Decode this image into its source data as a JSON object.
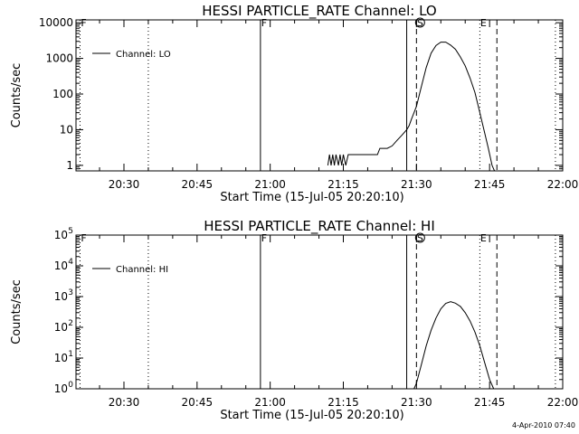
{
  "chart_data": [
    {
      "type": "line",
      "title": "HESSI PARTICLE_RATE Channel: LO",
      "xlabel": "Start Time (15-Jul-05 20:20:10)",
      "ylabel": "Counts/sec",
      "y_scale": "log",
      "ylim": [
        0.7,
        12000
      ],
      "y_ticks": [
        {
          "value": 1,
          "label": "1"
        },
        {
          "value": 10,
          "label": "10"
        },
        {
          "value": 100,
          "label": "100"
        },
        {
          "value": 1000,
          "label": "1000"
        },
        {
          "value": 10000,
          "label": "10000"
        }
      ],
      "x_ticks": [
        "20:30",
        "20:45",
        "21:00",
        "21:15",
        "21:30",
        "21:45",
        "22:00"
      ],
      "legend": {
        "label": "Channel: LO",
        "position": "top-left"
      },
      "markers": [
        {
          "t": "20:21:00",
          "style": "dotted",
          "label": "F"
        },
        {
          "t": "20:35:00",
          "style": "dotted",
          "label": ""
        },
        {
          "t": "20:58:00",
          "style": "solid",
          "label": "F"
        },
        {
          "t": "21:28:00",
          "style": "solid",
          "label": ""
        },
        {
          "t": "21:30:00",
          "style": "dashed",
          "label": "S"
        },
        {
          "t": "21:43:00",
          "style": "dotted",
          "label": "E"
        },
        {
          "t": "21:46:30",
          "style": "dashed",
          "label": ""
        },
        {
          "t": "21:58:30",
          "style": "dotted",
          "label": ""
        }
      ],
      "series": [
        {
          "name": "Channel: LO",
          "points": [
            [
              "21:11:50",
              1.0
            ],
            [
              "21:12:10",
              2.0
            ],
            [
              "21:12:30",
              1.0
            ],
            [
              "21:12:50",
              2.0
            ],
            [
              "21:13:10",
              1.0
            ],
            [
              "21:13:30",
              2.0
            ],
            [
              "21:14:00",
              1.0
            ],
            [
              "21:14:20",
              2.0
            ],
            [
              "21:14:40",
              1.0
            ],
            [
              "21:15:00",
              2.0
            ],
            [
              "21:15:30",
              1.0
            ],
            [
              "21:16:00",
              2.0
            ],
            [
              "21:22:00",
              2.0
            ],
            [
              "21:22:30",
              3.0
            ],
            [
              "21:24:00",
              3.0
            ],
            [
              "21:25:00",
              3.5
            ],
            [
              "21:26:00",
              5.0
            ],
            [
              "21:27:00",
              7.0
            ],
            [
              "21:28:00",
              10
            ],
            [
              "21:28:30",
              13
            ],
            [
              "21:29:00",
              20
            ],
            [
              "21:30:00",
              45
            ],
            [
              "21:31:00",
              160
            ],
            [
              "21:32:00",
              550
            ],
            [
              "21:33:00",
              1400
            ],
            [
              "21:34:00",
              2300
            ],
            [
              "21:35:00",
              2850
            ],
            [
              "21:36:00",
              2850
            ],
            [
              "21:37:00",
              2350
            ],
            [
              "21:38:00",
              1800
            ],
            [
              "21:39:00",
              1100
            ],
            [
              "21:40:00",
              620
            ],
            [
              "21:41:00",
              280
            ],
            [
              "21:42:00",
              110
            ],
            [
              "21:43:00",
              30
            ],
            [
              "21:44:00",
              8
            ],
            [
              "21:44:45",
              3
            ],
            [
              "21:45:30",
              1.0
            ],
            [
              "21:46:00",
              0.7
            ]
          ]
        }
      ]
    },
    {
      "type": "line",
      "title": "HESSI PARTICLE_RATE Channel: HI",
      "xlabel": "Start Time (15-Jul-05 20:20:10)",
      "ylabel": "Counts/sec",
      "y_scale": "log",
      "ylim": [
        1,
        100000
      ],
      "y_ticks": [
        {
          "value": 1,
          "base": "10",
          "exp": "0"
        },
        {
          "value": 10,
          "base": "10",
          "exp": "1"
        },
        {
          "value": 100,
          "base": "10",
          "exp": "2"
        },
        {
          "value": 1000,
          "base": "10",
          "exp": "3"
        },
        {
          "value": 10000,
          "base": "10",
          "exp": "4"
        },
        {
          "value": 100000,
          "base": "10",
          "exp": "5"
        }
      ],
      "x_ticks": [
        "20:30",
        "20:45",
        "21:00",
        "21:15",
        "21:30",
        "21:45",
        "22:00"
      ],
      "legend": {
        "label": "Channel: HI",
        "position": "top-left"
      },
      "markers": [
        {
          "t": "20:21:00",
          "style": "dotted",
          "label": "F"
        },
        {
          "t": "20:35:00",
          "style": "dotted",
          "label": ""
        },
        {
          "t": "20:58:00",
          "style": "solid",
          "label": "F"
        },
        {
          "t": "21:28:00",
          "style": "solid",
          "label": ""
        },
        {
          "t": "21:30:00",
          "style": "dashed",
          "label": "S"
        },
        {
          "t": "21:43:00",
          "style": "dotted",
          "label": "E"
        },
        {
          "t": "21:46:30",
          "style": "dashed",
          "label": ""
        },
        {
          "t": "21:58:30",
          "style": "dotted",
          "label": ""
        }
      ],
      "series": [
        {
          "name": "Channel: HI",
          "points": [
            [
              "21:29:30",
              1.0
            ],
            [
              "21:30:00",
              1.5
            ],
            [
              "21:31:00",
              6
            ],
            [
              "21:32:00",
              25
            ],
            [
              "21:33:00",
              80
            ],
            [
              "21:34:00",
              200
            ],
            [
              "21:35:00",
              400
            ],
            [
              "21:36:00",
              600
            ],
            [
              "21:37:00",
              680
            ],
            [
              "21:38:00",
              610
            ],
            [
              "21:39:00",
              480
            ],
            [
              "21:40:00",
              300
            ],
            [
              "21:41:00",
              160
            ],
            [
              "21:42:00",
              70
            ],
            [
              "21:43:00",
              25
            ],
            [
              "21:44:00",
              7
            ],
            [
              "21:45:00",
              2
            ],
            [
              "21:45:50",
              1.0
            ]
          ]
        }
      ]
    }
  ],
  "timestamp": "4-Apr-2010 07:40"
}
